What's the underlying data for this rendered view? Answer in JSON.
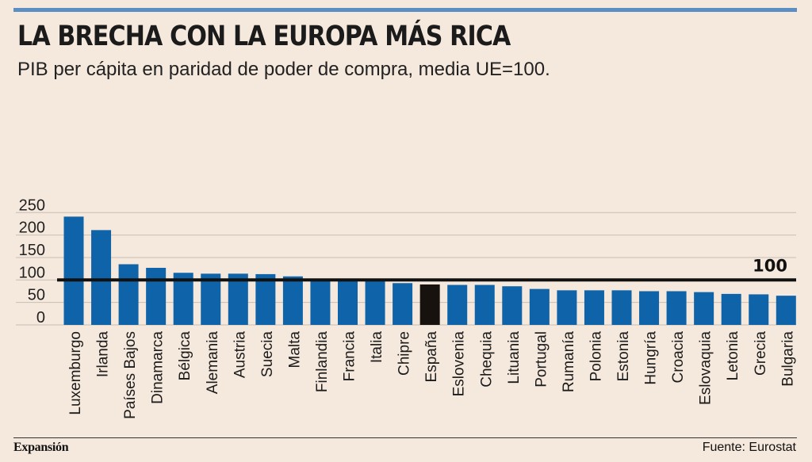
{
  "header": {
    "title": "LA BRECHA CON LA EUROPA MÁS RICA",
    "subtitle": "PIB per cápita en paridad de poder de compra, media UE=100."
  },
  "footer": {
    "brand": "Expansión",
    "source": "Fuente: Eurostat"
  },
  "colors": {
    "background": "#f5e8dc",
    "bar": "#0f63a8",
    "highlight": "#17120e",
    "reference_line": "#111111",
    "grid": "#c9beb4",
    "accent_rule": "#5b8ec4"
  },
  "chart_data": {
    "type": "bar",
    "categories": [
      "Luxemburgo",
      "Irlanda",
      "Países Bajos",
      "Dinamarca",
      "Bélgica",
      "Alemania",
      "Austria",
      "Suecia",
      "Malta",
      "Finlandia",
      "Francia",
      "Italia",
      "Chipre",
      "España",
      "Eslovenia",
      "Chequia",
      "Lituania",
      "Portugal",
      "Rumanía",
      "Polonia",
      "Estonia",
      "Hungría",
      "Croacia",
      "Eslovaquia",
      "Letonia",
      "Grecia",
      "Bulgaria"
    ],
    "values": [
      241,
      211,
      135,
      127,
      116,
      114,
      114,
      113,
      108,
      101,
      100,
      98,
      93,
      90,
      89,
      89,
      86,
      80,
      77,
      77,
      77,
      75,
      75,
      73,
      69,
      68,
      65
    ],
    "highlight_category": "España",
    "yticks": [
      0,
      50,
      100,
      150,
      200,
      250
    ],
    "ylim": [
      0,
      270
    ],
    "reference_line": {
      "value": 100,
      "label": "100"
    },
    "grid": true
  }
}
